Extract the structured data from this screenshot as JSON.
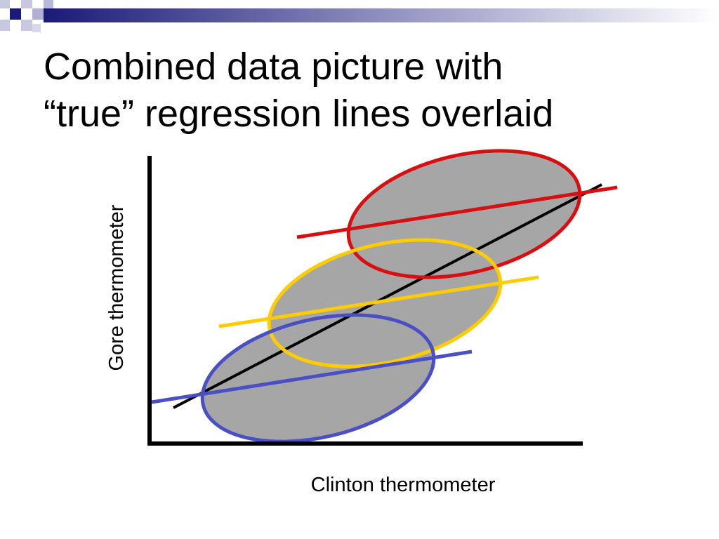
{
  "slide": {
    "title_line1": "Combined data picture with",
    "title_line2": "“true” regression lines overlaid"
  },
  "diagram": {
    "x_axis_label": "Clinton thermometer",
    "y_axis_label": "Gore thermometer",
    "groups": [
      {
        "color": "#d80f10"
      },
      {
        "color": "#ffcc00"
      },
      {
        "color": "#4b4fc4"
      }
    ],
    "overall_line_color": "#000000",
    "cloud_fill": "#a6a6a6",
    "theme_colors": {
      "navy": "#1a1a78",
      "light_square": "#c0c0dc"
    }
  }
}
